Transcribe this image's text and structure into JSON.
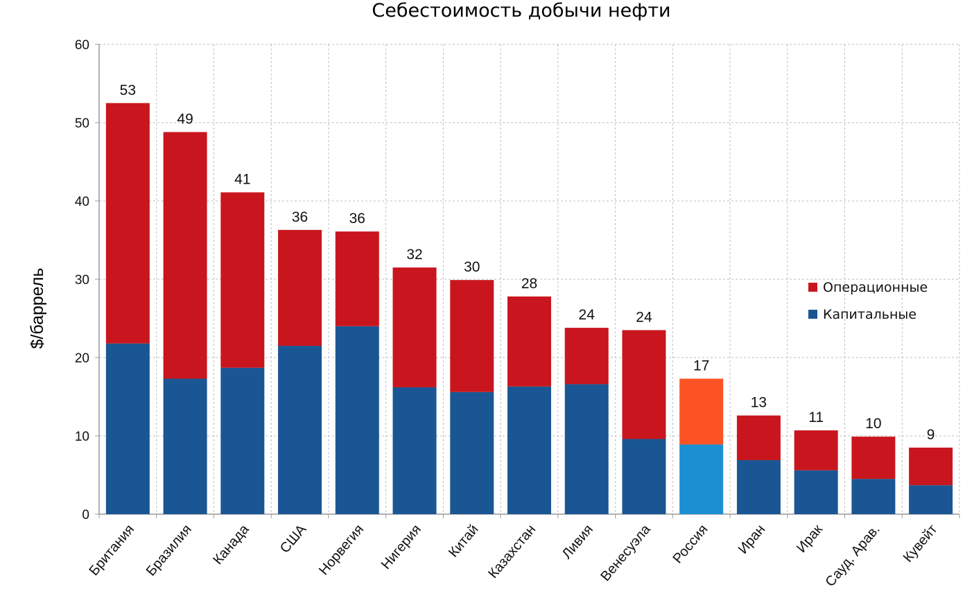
{
  "chart_data": {
    "type": "bar",
    "stacked": true,
    "title": "Себестоимость добычи нефти",
    "xlabel": "",
    "ylabel": "$/баррель",
    "ylim": [
      0,
      60
    ],
    "yticks": [
      0,
      10,
      20,
      30,
      40,
      50,
      60
    ],
    "grid": true,
    "legend_position": "right",
    "categories": [
      "Британия",
      "Бразилия",
      "Канада",
      "США",
      "Норвегия",
      "Нигерия",
      "Китай",
      "Казахстан",
      "Ливия",
      "Венесуэла",
      "Россия",
      "Иран",
      "Ирак",
      "Сауд. Арав.",
      "Кувейт"
    ],
    "series": [
      {
        "name": "Капитальные",
        "color": "#1a5693",
        "values": [
          21.8,
          17.3,
          18.7,
          21.5,
          24.0,
          16.2,
          15.6,
          16.3,
          16.6,
          9.6,
          8.9,
          6.9,
          5.6,
          4.5,
          3.7
        ]
      },
      {
        "name": "Операционные",
        "color": "#c9161e",
        "values": [
          30.7,
          31.5,
          22.4,
          14.8,
          12.1,
          15.3,
          14.3,
          11.5,
          7.2,
          13.9,
          8.4,
          5.7,
          5.1,
          5.4,
          4.8
        ]
      }
    ],
    "highlight": {
      "category": "Россия",
      "colors": {
        "Капитальные": "#1b8fd1",
        "Операционные": "#fb5323"
      }
    },
    "totals": [
      "53",
      "49",
      "41",
      "36",
      "36",
      "32",
      "30",
      "28",
      "24",
      "24",
      "17",
      "13",
      "11",
      "10",
      "9"
    ],
    "legend": [
      {
        "label": "Операционные",
        "color": "#c9161e"
      },
      {
        "label": "Капитальные",
        "color": "#1a5693"
      }
    ]
  }
}
